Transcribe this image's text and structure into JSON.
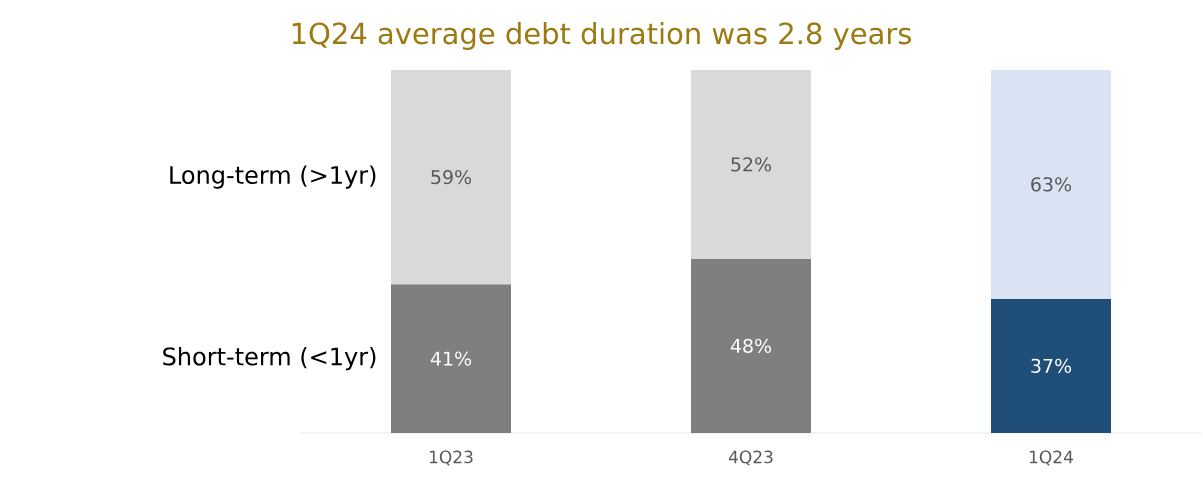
{
  "chart_data": {
    "type": "bar",
    "stacked": true,
    "title": "1Q24 average debt duration was 2.8 years",
    "categories": [
      "1Q23",
      "4Q23",
      "1Q24"
    ],
    "series": [
      {
        "name": "Short-term (<1yr)",
        "colors": [
          "#7f7f7f",
          "#7f7f7f",
          "#1f4e79"
        ],
        "values": [
          41,
          48,
          37
        ],
        "value_labels": [
          "41%",
          "48%",
          "37%"
        ]
      },
      {
        "name": "Long-term (>1yr)",
        "colors": [
          "#d9d9d9",
          "#d9d9d9",
          "#dae3f3"
        ],
        "values": [
          59,
          52,
          63
        ],
        "value_labels": [
          "59%",
          "52%",
          "63%"
        ]
      }
    ]
  }
}
